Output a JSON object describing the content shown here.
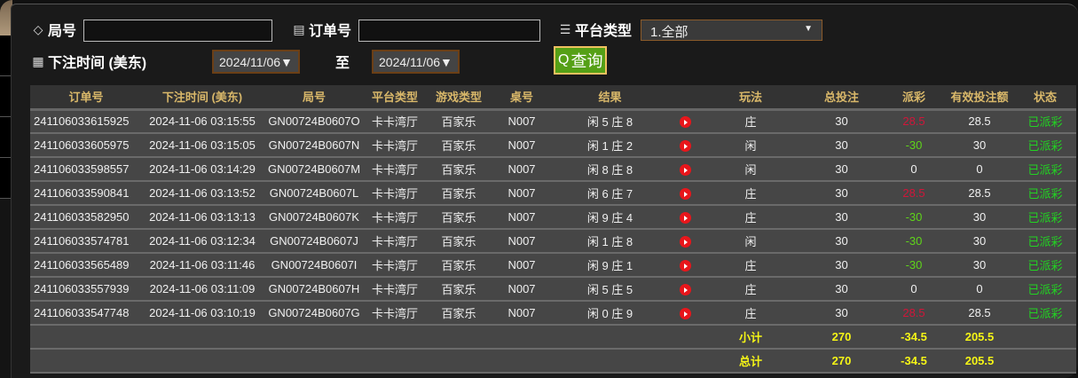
{
  "filters": {
    "round_label": "局号",
    "round_value": "",
    "order_label": "订单号",
    "order_value": "",
    "platform_label": "平台类型",
    "platform_value": "1.全部",
    "time_label": "下注时间 (美东)",
    "date_from": "2024/11/06▼",
    "to_label": "至",
    "date_to": "2024/11/06▼",
    "query_label": "查询"
  },
  "table": {
    "headers": [
      "订单号",
      "下注时间 (美东)",
      "局号",
      "平台类型",
      "游戏类型",
      "桌号",
      "结果",
      "",
      "玩法",
      "总投注",
      "派彩",
      "有效投注额",
      "状态"
    ],
    "rows": [
      {
        "order": "241106033615925",
        "time": "2024-11-06 03:15:55",
        "round": "GN00724B0607O",
        "platform": "卡卡湾厅",
        "game": "百家乐",
        "table": "N007",
        "result": "闲 5 庄 8",
        "play": "庄",
        "bet": "30",
        "payout": "28.5",
        "payout_color": "red",
        "valid": "28.5",
        "status": "已派彩"
      },
      {
        "order": "241106033605975",
        "time": "2024-11-06 03:15:05",
        "round": "GN00724B0607N",
        "platform": "卡卡湾厅",
        "game": "百家乐",
        "table": "N007",
        "result": "闲 1 庄 2",
        "play": "闲",
        "bet": "30",
        "payout": "-30",
        "payout_color": "green",
        "valid": "30",
        "status": "已派彩"
      },
      {
        "order": "241106033598557",
        "time": "2024-11-06 03:14:29",
        "round": "GN00724B0607M",
        "platform": "卡卡湾厅",
        "game": "百家乐",
        "table": "N007",
        "result": "闲 8 庄 8",
        "play": "闲",
        "bet": "30",
        "payout": "0",
        "payout_color": "white",
        "valid": "0",
        "status": "已派彩"
      },
      {
        "order": "241106033590841",
        "time": "2024-11-06 03:13:52",
        "round": "GN00724B0607L",
        "platform": "卡卡湾厅",
        "game": "百家乐",
        "table": "N007",
        "result": "闲 6 庄 7",
        "play": "庄",
        "bet": "30",
        "payout": "28.5",
        "payout_color": "red",
        "valid": "28.5",
        "status": "已派彩"
      },
      {
        "order": "241106033582950",
        "time": "2024-11-06 03:13:13",
        "round": "GN00724B0607K",
        "platform": "卡卡湾厅",
        "game": "百家乐",
        "table": "N007",
        "result": "闲 9 庄 4",
        "play": "庄",
        "bet": "30",
        "payout": "-30",
        "payout_color": "green",
        "valid": "30",
        "status": "已派彩"
      },
      {
        "order": "241106033574781",
        "time": "2024-11-06 03:12:34",
        "round": "GN00724B0607J",
        "platform": "卡卡湾厅",
        "game": "百家乐",
        "table": "N007",
        "result": "闲 1 庄 8",
        "play": "闲",
        "bet": "30",
        "payout": "-30",
        "payout_color": "green",
        "valid": "30",
        "status": "已派彩"
      },
      {
        "order": "241106033565489",
        "time": "2024-11-06 03:11:46",
        "round": "GN00724B0607I",
        "platform": "卡卡湾厅",
        "game": "百家乐",
        "table": "N007",
        "result": "闲 9 庄 1",
        "play": "庄",
        "bet": "30",
        "payout": "-30",
        "payout_color": "green",
        "valid": "30",
        "status": "已派彩"
      },
      {
        "order": "241106033557939",
        "time": "2024-11-06 03:11:09",
        "round": "GN00724B0607H",
        "platform": "卡卡湾厅",
        "game": "百家乐",
        "table": "N007",
        "result": "闲 5 庄 5",
        "play": "庄",
        "bet": "30",
        "payout": "0",
        "payout_color": "white",
        "valid": "0",
        "status": "已派彩"
      },
      {
        "order": "241106033547748",
        "time": "2024-11-06 03:10:19",
        "round": "GN00724B0607G",
        "platform": "卡卡湾厅",
        "game": "百家乐",
        "table": "N007",
        "result": "闲 0 庄 9",
        "play": "庄",
        "bet": "30",
        "payout": "28.5",
        "payout_color": "red",
        "valid": "28.5",
        "status": "已派彩"
      }
    ],
    "subtotal": {
      "label": "小计",
      "bet": "270",
      "payout": "-34.5",
      "valid": "205.5"
    },
    "total": {
      "label": "总计",
      "bet": "270",
      "payout": "-34.5",
      "valid": "205.5"
    }
  }
}
